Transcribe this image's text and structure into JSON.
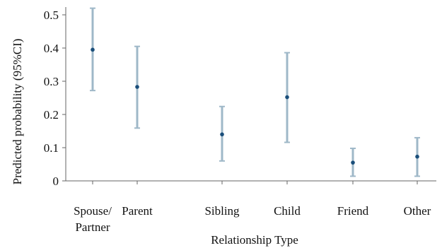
{
  "chart_data": {
    "type": "scatter",
    "subtype": "point-estimate-with-95ci",
    "title": "",
    "xlabel": "Relationship Type",
    "ylabel": "Predicted probability (95%CI)",
    "ylim": [
      0,
      0.52
    ],
    "yticks": [
      0,
      0.1,
      0.2,
      0.3,
      0.4,
      0.5
    ],
    "ytick_labels": [
      "0",
      "0.1",
      "0.2",
      "0.3",
      "0.4",
      "0.5"
    ],
    "grid": false,
    "legend": "none",
    "categories": [
      {
        "label": "Spouse/\nPartner",
        "lines": [
          "Spouse/",
          "Partner"
        ]
      },
      {
        "label": "Parent",
        "lines": [
          "Parent"
        ]
      },
      {
        "label": "Sibling",
        "lines": [
          "Sibling"
        ]
      },
      {
        "label": "Child",
        "lines": [
          "Child"
        ]
      },
      {
        "label": "Friend",
        "lines": [
          "Friend"
        ]
      },
      {
        "label": "Other",
        "lines": [
          "Other"
        ]
      }
    ],
    "values": [
      0.395,
      0.283,
      0.14,
      0.252,
      0.055,
      0.073
    ],
    "ci_lower": [
      0.272,
      0.159,
      0.06,
      0.116,
      0.014,
      0.014
    ],
    "ci_upper": [
      0.52,
      0.405,
      0.224,
      0.386,
      0.098,
      0.13
    ],
    "colors": {
      "point": "#1a4e7a",
      "ci_line": "#9fb8c8",
      "ci_cap": "#9fb8c8",
      "axis": "#666666",
      "text": "#111111"
    }
  }
}
